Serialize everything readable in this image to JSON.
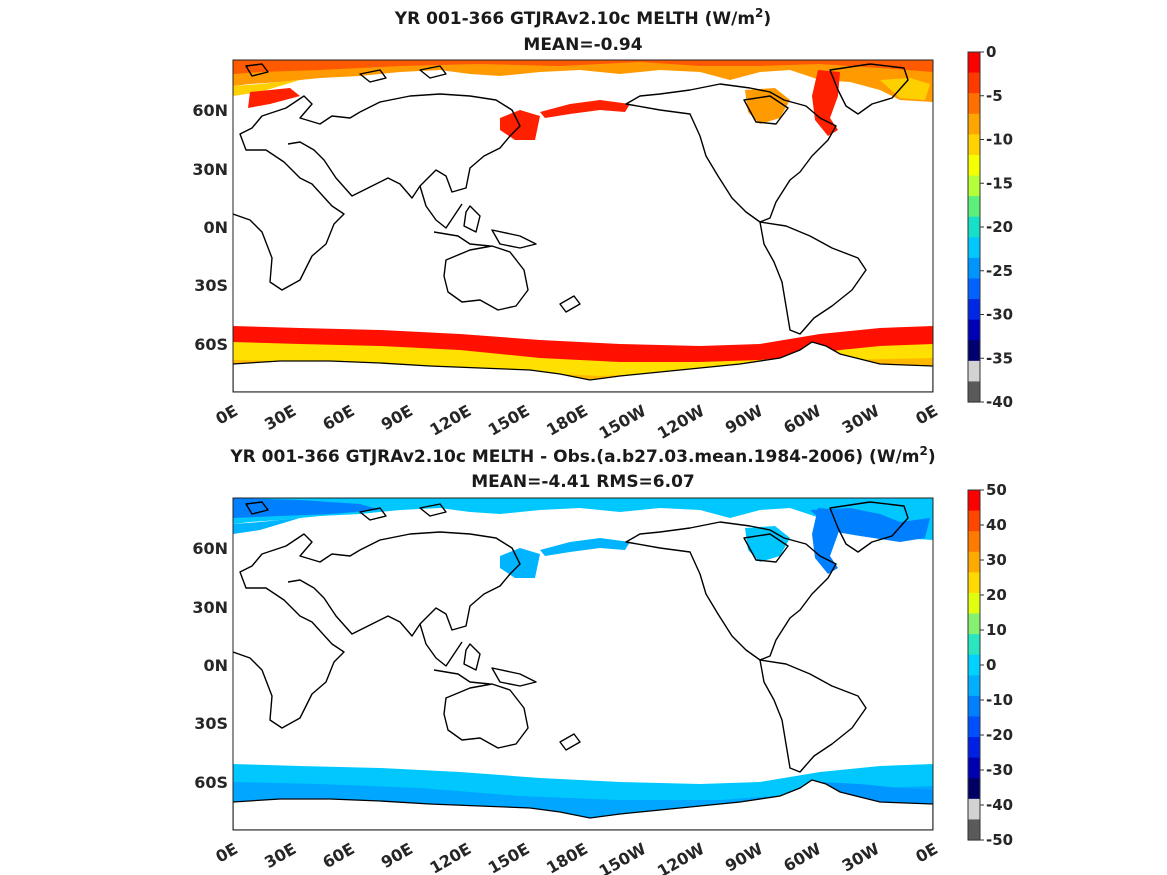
{
  "panels": [
    {
      "title_main": "YR 001-366 GTJRAv2.10c  MELTH (W/m",
      "title_sup": "2",
      "title_end": ")",
      "subtitle": "MEAN=-0.94",
      "colorbar": {
        "ticks": [
          "0",
          "-5",
          "-10",
          "-15",
          "-20",
          "-25",
          "-30",
          "-35",
          "-40"
        ],
        "colors": [
          "#ff0000",
          "#ff3a00",
          "#ff7000",
          "#ffa500",
          "#ffd200",
          "#f5ff00",
          "#b5ff3a",
          "#5cf07a",
          "#16e0c8",
          "#00c8ff",
          "#0096ff",
          "#0062ff",
          "#0026e6",
          "#0000b4",
          "#00006e",
          "#d2d2d2",
          "#5a5a5a"
        ]
      },
      "fields": {
        "arctic": "#ff9a00",
        "arctic_edge": "#ffd000",
        "arctic_core": "#ff5a00",
        "marginal": "#ff2000",
        "southern_ring": "#ff1000",
        "southern_inner": "#ffe000",
        "antarctic_shelf": "#ffb800"
      }
    },
    {
      "title_main": "YR 001-366 GTJRAv2.10c MELTH - Obs.(a.b27.03.mean.1984-2006) (W/m",
      "title_sup": "2",
      "title_end": ")",
      "subtitle": "MEAN=-4.41 RMS=6.07",
      "colorbar": {
        "ticks": [
          "50",
          "40",
          "30",
          "20",
          "10",
          "0",
          "-10",
          "-20",
          "-30",
          "-40",
          "-50"
        ],
        "colors": [
          "#ff0000",
          "#ff4600",
          "#ff7a00",
          "#ffaa00",
          "#ffd800",
          "#e0ff10",
          "#86f070",
          "#2ae6c0",
          "#00d2ff",
          "#00b0ff",
          "#0080ff",
          "#0050ff",
          "#0020e6",
          "#0000b0",
          "#000064",
          "#d2d2d2",
          "#5a5a5a"
        ]
      },
      "fields": {
        "arctic": "#00c8ff",
        "arctic_edge": "#00b4ff",
        "arctic_core": "#0080ff",
        "marginal": "#00b4ff",
        "southern_ring": "#00c8ff",
        "southern_inner": "#00a6ff",
        "antarctic_shelf": "#0096ff"
      }
    }
  ],
  "lon_labels": [
    "0E",
    "30E",
    "60E",
    "90E",
    "120E",
    "150E",
    "180E",
    "150W",
    "120W",
    "90W",
    "60W",
    "30W",
    "0E"
  ],
  "lat_labels": [
    "60N",
    "30N",
    "0N",
    "30S",
    "60S"
  ]
}
